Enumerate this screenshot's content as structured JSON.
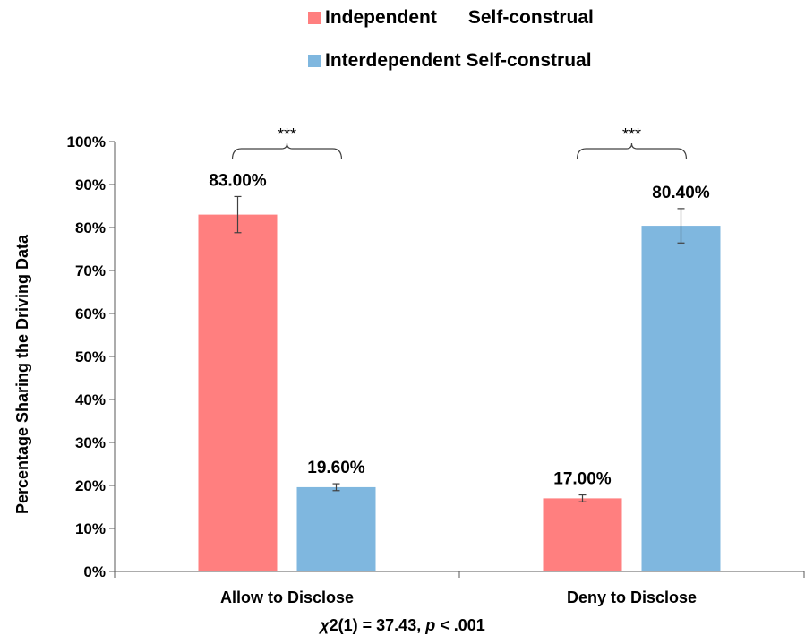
{
  "chart_data": {
    "type": "bar",
    "categories": [
      "Allow to Disclose",
      "Deny to Disclose"
    ],
    "series": [
      {
        "name": "Independent      Self-construal",
        "color": "#FF7F7F",
        "values": [
          83.0,
          17.0
        ],
        "error": [
          4.2,
          0.8
        ],
        "labels": [
          "83.00%",
          "17.00%"
        ]
      },
      {
        "name": "Interdependent Self-construal",
        "color": "#7FB7DF",
        "values": [
          19.6,
          80.4
        ],
        "error": [
          0.8,
          4.0
        ],
        "labels": [
          "19.60%",
          "80.40%"
        ]
      }
    ],
    "ylabel": "Percentage Sharing the Driving Data",
    "ylim": [
      0,
      100
    ],
    "yticks": [
      0,
      10,
      20,
      30,
      40,
      50,
      60,
      70,
      80,
      90,
      100
    ],
    "ytick_labels": [
      "0%",
      "10%",
      "20%",
      "30%",
      "40%",
      "50%",
      "60%",
      "70%",
      "80%",
      "90%",
      "100%"
    ],
    "significance": [
      "***",
      "***"
    ],
    "legend_position": "top-center",
    "grid": false
  },
  "footer": {
    "chi_symbol": "χ",
    "chi_rest": "2(1) = 37.43,  ",
    "p_symbol": "p",
    "p_rest": " < .001"
  }
}
